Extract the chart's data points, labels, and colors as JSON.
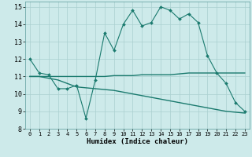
{
  "xlabel": "Humidex (Indice chaleur)",
  "background_color": "#cdeaea",
  "grid_color": "#aad0d0",
  "line_color": "#1a7a6e",
  "xlim": [
    -0.5,
    23.5
  ],
  "ylim": [
    8,
    15.3
  ],
  "xticks": [
    0,
    1,
    2,
    3,
    4,
    5,
    6,
    7,
    8,
    9,
    10,
    11,
    12,
    13,
    14,
    15,
    16,
    17,
    18,
    19,
    20,
    21,
    22,
    23
  ],
  "yticks": [
    8,
    9,
    10,
    11,
    12,
    13,
    14,
    15
  ],
  "line1_x": [
    0,
    1,
    2,
    3,
    4,
    5,
    6,
    7,
    8,
    9,
    10,
    11,
    12,
    13,
    14,
    15,
    16,
    17,
    18,
    19,
    20,
    21,
    22,
    23
  ],
  "line1_y": [
    12,
    11.2,
    11.1,
    10.3,
    10.3,
    10.5,
    8.6,
    10.8,
    13.5,
    12.5,
    14.0,
    14.8,
    13.9,
    14.1,
    15.0,
    14.8,
    14.3,
    14.6,
    14.1,
    12.2,
    11.2,
    10.6,
    9.5,
    9.0
  ],
  "line2_x": [
    0,
    1,
    2,
    3,
    4,
    5,
    6,
    7,
    8,
    9,
    10,
    11,
    12,
    13,
    14,
    15,
    16,
    17,
    18,
    19,
    20,
    21,
    22,
    23
  ],
  "line2_y": [
    11.0,
    11.0,
    11.0,
    11.0,
    11.0,
    11.0,
    11.0,
    11.0,
    11.0,
    11.05,
    11.05,
    11.05,
    11.1,
    11.1,
    11.1,
    11.1,
    11.15,
    11.2,
    11.2,
    11.2,
    11.2,
    11.2,
    11.2,
    11.2
  ],
  "line3_x": [
    0,
    1,
    2,
    3,
    4,
    5,
    6,
    7,
    8,
    9,
    10,
    11,
    12,
    13,
    14,
    15,
    16,
    17,
    18,
    19,
    20,
    21,
    22,
    23
  ],
  "line3_y": [
    11.0,
    11.0,
    10.9,
    10.8,
    10.6,
    10.4,
    10.35,
    10.3,
    10.25,
    10.2,
    10.1,
    10.0,
    9.9,
    9.8,
    9.7,
    9.6,
    9.5,
    9.4,
    9.3,
    9.2,
    9.1,
    9.0,
    8.95,
    8.9
  ]
}
